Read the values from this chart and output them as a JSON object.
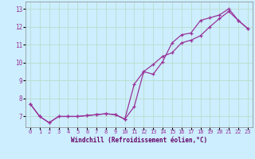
{
  "xlabel": "Windchill (Refroidissement éolien,°C)",
  "bg_color": "#cceeff",
  "grid_color": "#bbddcc",
  "line_color": "#993399",
  "marker": "+",
  "xlim": [
    -0.5,
    23.5
  ],
  "ylim": [
    6.4,
    13.4
  ],
  "xticks": [
    0,
    1,
    2,
    3,
    4,
    5,
    6,
    7,
    8,
    9,
    10,
    11,
    12,
    13,
    14,
    15,
    16,
    17,
    18,
    19,
    20,
    21,
    22,
    23
  ],
  "yticks": [
    7,
    8,
    9,
    10,
    11,
    12,
    13
  ],
  "series1_x": [
    0,
    1,
    2,
    3,
    4,
    5,
    6,
    7,
    8,
    9,
    10,
    11,
    12,
    13,
    14,
    15,
    16,
    17,
    18,
    19,
    20,
    21,
    22,
    23
  ],
  "series1_y": [
    7.7,
    7.0,
    6.65,
    7.0,
    7.0,
    7.0,
    7.05,
    7.1,
    7.15,
    7.1,
    6.85,
    7.55,
    9.5,
    9.35,
    10.05,
    11.1,
    11.55,
    11.65,
    12.35,
    12.5,
    12.65,
    13.0,
    12.35,
    11.9
  ],
  "series2_x": [
    0,
    1,
    2,
    3,
    4,
    5,
    6,
    7,
    8,
    9,
    10,
    11,
    12,
    13,
    14,
    15,
    16,
    17,
    18,
    19,
    20,
    21,
    22,
    23
  ],
  "series2_y": [
    7.7,
    7.0,
    6.65,
    7.0,
    7.0,
    7.0,
    7.05,
    7.1,
    7.15,
    7.1,
    6.85,
    8.8,
    9.5,
    9.9,
    10.35,
    10.55,
    11.1,
    11.25,
    11.5,
    12.0,
    12.45,
    12.85,
    12.35,
    11.9
  ]
}
